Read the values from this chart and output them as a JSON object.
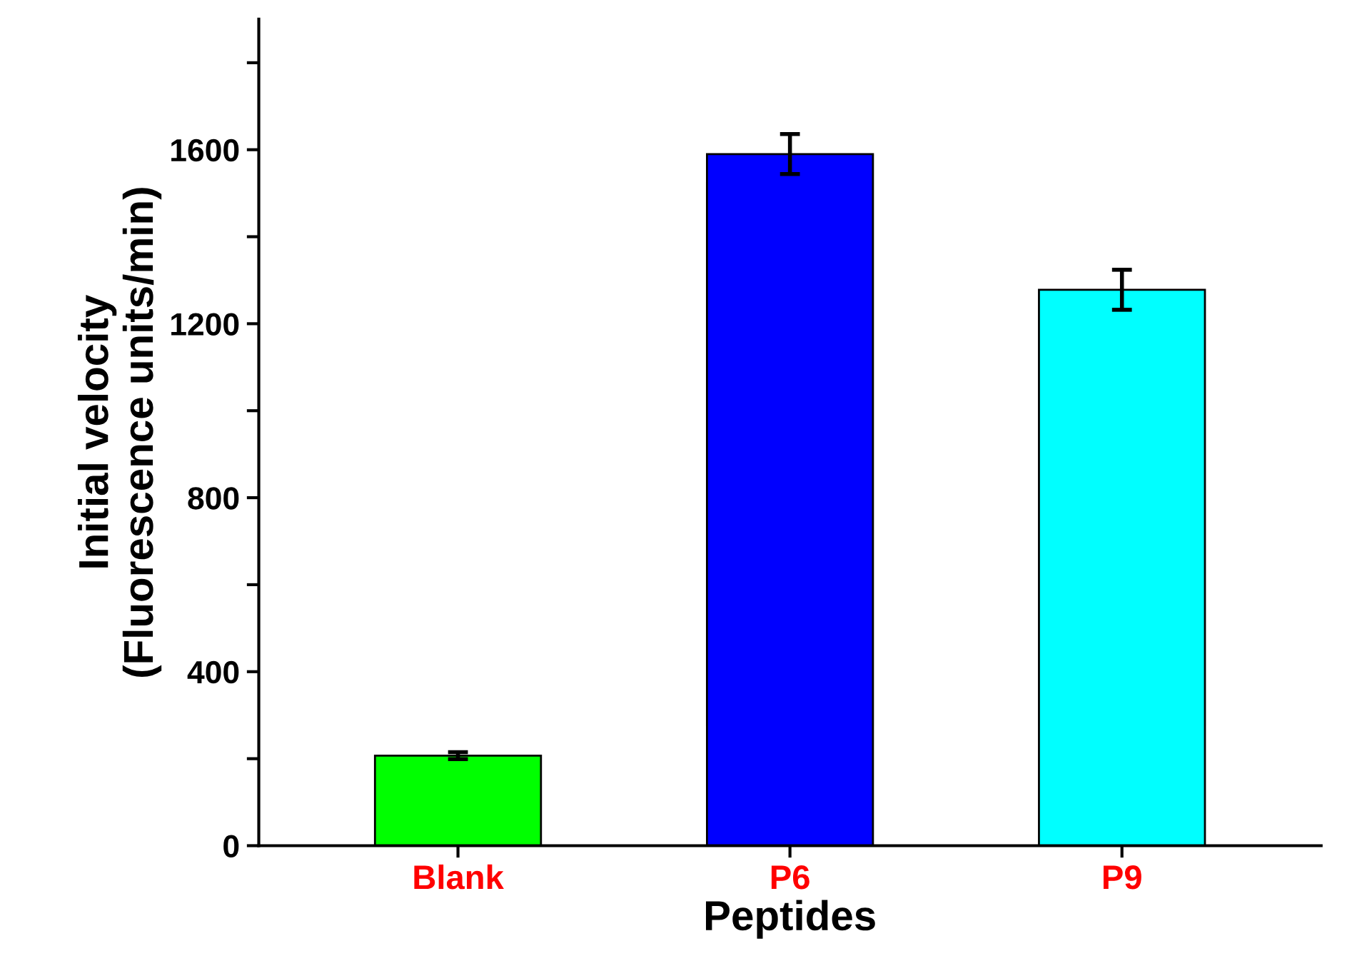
{
  "chart_data": {
    "type": "bar",
    "xlabel": "Peptides",
    "ylabel": "Initial velocity\n(Fluorescence units/min)",
    "categories": [
      "Blank",
      "P6",
      "P9"
    ],
    "values": [
      207,
      1590,
      1278
    ],
    "errors": [
      8,
      46,
      46
    ],
    "colors": [
      "#00ff00",
      "#0000ff",
      "#00ffff"
    ],
    "ylim": [
      0,
      1900
    ],
    "yticks": [
      0,
      {
        "value": 200,
        "label": null
      },
      400,
      {
        "value": 600,
        "label": null
      },
      800,
      {
        "value": 1000,
        "label": null
      },
      1200,
      {
        "value": 1400,
        "label": null
      },
      1600,
      {
        "value": 1800,
        "label": null
      }
    ],
    "grid": false,
    "legend": false
  }
}
